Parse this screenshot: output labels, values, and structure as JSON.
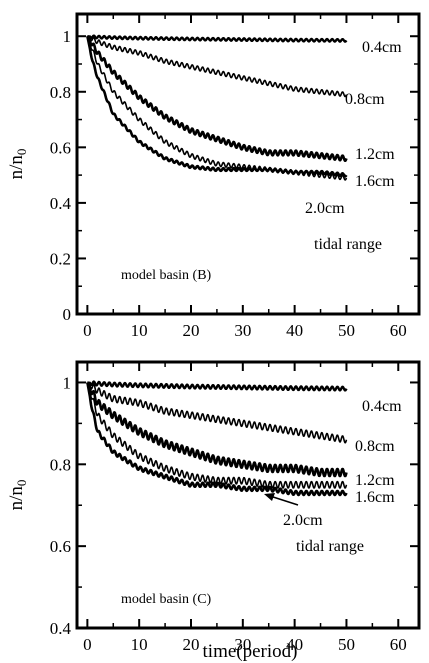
{
  "chart_data": [
    {
      "type": "line",
      "panel_label": "model basin (B)",
      "ylabel": "n/n",
      "ylabel_sub": "0",
      "xlabel": "",
      "xlim": [
        -2,
        64
      ],
      "ylim": [
        0,
        1.08
      ],
      "xticks": [
        0,
        10,
        20,
        30,
        40,
        50,
        60
      ],
      "yticks": [
        0,
        0.2,
        0.4,
        0.6,
        0.8,
        1
      ],
      "ytick_labels": [
        "0",
        "0.2",
        "0.4",
        "0.6",
        "0.8",
        "1"
      ],
      "legend_title": "tidal range",
      "series": [
        {
          "name": "0.4cm",
          "x": [
            0,
            1,
            2,
            5,
            10,
            20,
            30,
            40,
            50
          ],
          "y": [
            1,
            0.998,
            0.997,
            0.995,
            0.993,
            0.99,
            0.988,
            0.986,
            0.985
          ]
        },
        {
          "name": "0.8cm",
          "x": [
            0,
            1,
            2,
            5,
            10,
            15,
            20,
            25,
            30,
            35,
            40,
            45,
            50
          ],
          "y": [
            1,
            0.99,
            0.98,
            0.96,
            0.94,
            0.91,
            0.89,
            0.87,
            0.85,
            0.83,
            0.81,
            0.8,
            0.79
          ]
        },
        {
          "name": "1.2cm",
          "x": [
            0,
            1,
            2,
            5,
            10,
            15,
            20,
            25,
            30,
            35,
            40,
            45,
            50
          ],
          "y": [
            1,
            0.97,
            0.94,
            0.87,
            0.78,
            0.71,
            0.66,
            0.63,
            0.6,
            0.58,
            0.58,
            0.57,
            0.56
          ]
        },
        {
          "name": "1.6cm",
          "x": [
            0,
            1,
            2,
            5,
            10,
            15,
            20,
            25,
            30,
            35,
            40,
            45,
            50
          ],
          "y": [
            1,
            0.95,
            0.9,
            0.8,
            0.7,
            0.62,
            0.57,
            0.54,
            0.53,
            0.52,
            0.51,
            0.5,
            0.49
          ]
        },
        {
          "name": "2.0cm",
          "x": [
            0,
            1,
            2,
            5,
            10,
            15,
            20,
            25,
            30,
            35,
            40,
            45,
            50
          ],
          "y": [
            1,
            0.91,
            0.85,
            0.72,
            0.62,
            0.56,
            0.53,
            0.52,
            0.52,
            0.52,
            0.51,
            0.51,
            0.5
          ]
        }
      ]
    },
    {
      "type": "line",
      "panel_label": "model basin (C)",
      "ylabel": "n/n",
      "ylabel_sub": "0",
      "xlabel": "time(period)",
      "xlim": [
        -2,
        64
      ],
      "ylim": [
        0.4,
        1.05
      ],
      "xticks": [
        0,
        10,
        20,
        30,
        40,
        50,
        60
      ],
      "yticks": [
        0.4,
        0.6,
        0.8,
        1
      ],
      "ytick_labels": [
        "0.4",
        "0.6",
        "0.8",
        "1"
      ],
      "legend_title": "tidal range",
      "series": [
        {
          "name": "0.4cm",
          "x": [
            0,
            1,
            2,
            5,
            10,
            20,
            30,
            40,
            50
          ],
          "y": [
            1,
            0.998,
            0.997,
            0.995,
            0.993,
            0.99,
            0.988,
            0.986,
            0.985
          ]
        },
        {
          "name": "0.8cm",
          "x": [
            0,
            1,
            2,
            5,
            10,
            15,
            20,
            25,
            30,
            35,
            40,
            45,
            50
          ],
          "y": [
            1,
            0.99,
            0.98,
            0.96,
            0.95,
            0.93,
            0.92,
            0.91,
            0.9,
            0.89,
            0.88,
            0.87,
            0.86
          ]
        },
        {
          "name": "1.2cm",
          "x": [
            0,
            1,
            2,
            5,
            10,
            15,
            20,
            25,
            30,
            35,
            40,
            45,
            50
          ],
          "y": [
            1,
            0.975,
            0.95,
            0.92,
            0.88,
            0.85,
            0.83,
            0.81,
            0.8,
            0.79,
            0.79,
            0.78,
            0.78
          ]
        },
        {
          "name": "1.6cm",
          "x": [
            0,
            1,
            2,
            5,
            10,
            15,
            20,
            25,
            30,
            35,
            40,
            45,
            50
          ],
          "y": [
            1,
            0.96,
            0.92,
            0.87,
            0.82,
            0.79,
            0.77,
            0.76,
            0.76,
            0.75,
            0.75,
            0.75,
            0.75
          ]
        },
        {
          "name": "2.0cm",
          "x": [
            0,
            1,
            2,
            5,
            10,
            15,
            20,
            25,
            30,
            35,
            40,
            45,
            50
          ],
          "y": [
            1,
            0.93,
            0.88,
            0.83,
            0.79,
            0.77,
            0.75,
            0.75,
            0.74,
            0.74,
            0.73,
            0.73,
            0.73
          ]
        }
      ]
    }
  ]
}
